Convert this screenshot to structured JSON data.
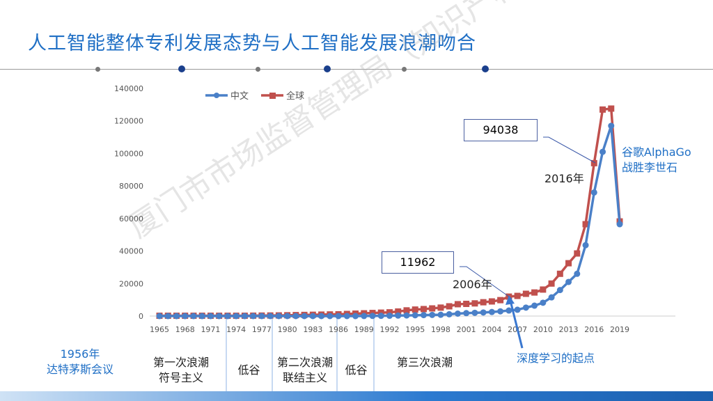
{
  "title": "人工智能整体专利发展态势与人工智能发展浪潮吻合",
  "watermark": "厦门市市场监督管理局（知识产权局）",
  "chart_data": {
    "type": "line",
    "x": [
      1965,
      1966,
      1967,
      1968,
      1969,
      1970,
      1971,
      1972,
      1973,
      1974,
      1975,
      1976,
      1977,
      1978,
      1979,
      1980,
      1981,
      1982,
      1983,
      1984,
      1985,
      1986,
      1987,
      1988,
      1989,
      1990,
      1991,
      1992,
      1993,
      1994,
      1995,
      1996,
      1997,
      1998,
      1999,
      2000,
      2001,
      2002,
      2003,
      2004,
      2005,
      2006,
      2007,
      2008,
      2009,
      2010,
      2011,
      2012,
      2013,
      2014,
      2015,
      2016,
      2017,
      2018,
      2019
    ],
    "xticks": [
      "1965",
      "1968",
      "1971",
      "1974",
      "1977",
      "1980",
      "1983",
      "1986",
      "1989",
      "1992",
      "1995",
      "1998",
      "2001",
      "2004",
      "2007",
      "2010",
      "2013",
      "2016",
      "2019"
    ],
    "yticks": [
      "0",
      "20000",
      "40000",
      "60000",
      "80000",
      "100000",
      "120000",
      "140000"
    ],
    "ylim": [
      0,
      140000
    ],
    "legend_placement": "top-left",
    "series": [
      {
        "name": "中文",
        "color": "#4a80c8",
        "values": [
          0,
          0,
          0,
          0,
          0,
          0,
          0,
          0,
          0,
          0,
          0,
          0,
          0,
          0,
          0,
          0,
          0,
          0,
          0,
          0,
          0,
          0,
          0,
          0,
          50,
          100,
          150,
          200,
          300,
          400,
          500,
          600,
          700,
          800,
          1100,
          1500,
          1800,
          2000,
          2200,
          2500,
          2900,
          3400,
          3900,
          5200,
          6400,
          8200,
          11500,
          16000,
          21000,
          26000,
          43600,
          76000,
          101000,
          117000,
          56500
        ]
      },
      {
        "name": "全球",
        "color": "#c0504d",
        "values": [
          200,
          200,
          200,
          200,
          200,
          200,
          200,
          200,
          200,
          200,
          200,
          250,
          300,
          350,
          400,
          500,
          600,
          700,
          800,
          900,
          1000,
          1100,
          1300,
          1500,
          1700,
          1900,
          2100,
          2300,
          2800,
          3500,
          4000,
          4300,
          4700,
          5200,
          6000,
          7300,
          7500,
          7800,
          8500,
          9000,
          9800,
          11962,
          12400,
          13700,
          14500,
          16300,
          20000,
          26000,
          32500,
          38500,
          56500,
          94038,
          127000,
          127600,
          58200
        ]
      }
    ],
    "annotations": [
      {
        "box": "11962",
        "text": "2006年",
        "x": 2006
      },
      {
        "box": "94038",
        "text": "2016年",
        "x": 2016
      }
    ]
  },
  "labels": {
    "founding": [
      "1956年",
      "达特茅斯会议"
    ],
    "wave1": [
      "第一次浪潮",
      "符号主义"
    ],
    "low1": "低谷",
    "wave2": [
      "第二次浪潮",
      "联结主义"
    ],
    "low2": "低谷",
    "wave3": "第三次浪潮",
    "deep": "深度学习的起点",
    "alphago": [
      "谷歌AlphaGo",
      "战胜李世石"
    ]
  }
}
